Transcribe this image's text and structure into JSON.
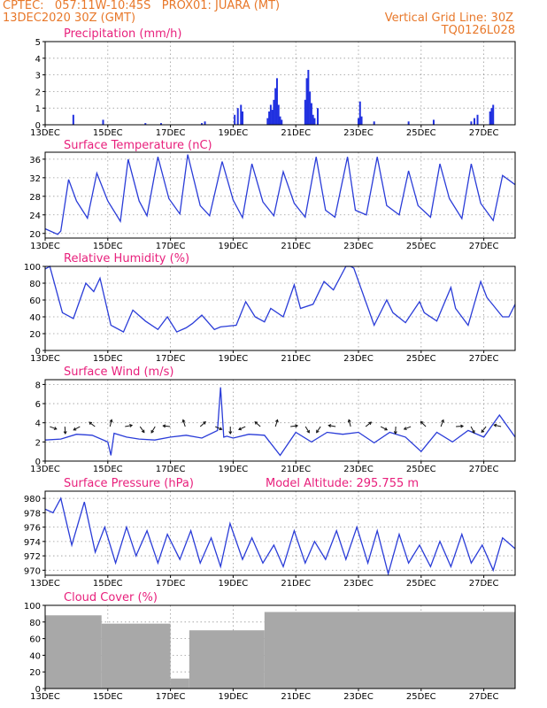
{
  "header": {
    "line1_left": "CPTEC:   057:11W-10:45S   PROX01: JUARA (MT)",
    "line2_left": "13DEC2020 30Z (GMT)",
    "line2_right": "Vertical Grid Line: 30Z",
    "line3_right": "TQ0126L028"
  },
  "colors": {
    "accent": "#e8782a",
    "title": "#e8207c",
    "line": "#2a3cd8",
    "bar_blue": "#2030e0",
    "bar_gray": "#a8a8a8"
  },
  "x_ticks": [
    "13DEC",
    "15DEC",
    "17DEC",
    "19DEC",
    "21DEC",
    "23DEC",
    "25DEC",
    "27DEC"
  ],
  "x_tick_days": [
    0,
    2,
    4,
    6,
    8,
    10,
    12,
    14
  ],
  "x_range_days": [
    0,
    15
  ],
  "chart_data": [
    {
      "type": "bar",
      "title": "Precipitation (mm/h)",
      "ylim": [
        0,
        5
      ],
      "yticks": [
        "0",
        "1",
        "2",
        "3",
        "4",
        "5"
      ],
      "x_days": [
        0.9,
        1.85,
        3.2,
        3.7,
        5.0,
        5.1,
        6.05,
        6.15,
        6.25,
        6.3,
        7.1,
        7.15,
        7.2,
        7.25,
        7.3,
        7.35,
        7.4,
        7.45,
        7.5,
        7.55,
        8.3,
        8.35,
        8.4,
        8.45,
        8.5,
        8.55,
        8.6,
        8.7,
        10.0,
        10.05,
        10.1,
        10.5,
        11.6,
        12.4,
        13.6,
        13.7,
        13.8,
        14.2,
        14.25,
        14.3
      ],
      "values": [
        0.6,
        0.3,
        0.1,
        0.1,
        0.1,
        0.2,
        0.6,
        1.0,
        1.2,
        0.8,
        0.4,
        0.8,
        1.2,
        0.9,
        1.5,
        2.2,
        2.8,
        1.2,
        0.5,
        0.3,
        1.5,
        2.8,
        3.3,
        2.0,
        1.3,
        0.6,
        0.4,
        1.0,
        0.4,
        1.4,
        0.5,
        0.2,
        0.2,
        0.3,
        0.2,
        0.4,
        0.6,
        0.8,
        1.0,
        1.2
      ]
    },
    {
      "type": "line",
      "title": "Surface Temperature (nC)",
      "ylim": [
        19,
        37.5
      ],
      "yticks": [
        "20",
        "24",
        "28",
        "32",
        "36"
      ],
      "x_days": [
        0,
        0.4,
        0.5,
        0.75,
        1.0,
        1.35,
        1.65,
        2.0,
        2.4,
        2.65,
        3.0,
        3.25,
        3.6,
        3.95,
        4.3,
        4.55,
        4.95,
        5.25,
        5.65,
        6.0,
        6.3,
        6.6,
        6.95,
        7.3,
        7.6,
        7.95,
        8.3,
        8.65,
        8.95,
        9.25,
        9.65,
        9.9,
        10.25,
        10.6,
        10.9,
        11.3,
        11.6,
        11.9,
        12.3,
        12.6,
        12.9,
        13.3,
        13.6,
        13.9,
        14.3,
        14.6,
        15.0
      ],
      "values": [
        21,
        19.8,
        20.5,
        31.6,
        27,
        23.3,
        33,
        27,
        22.6,
        36,
        27,
        23.8,
        36.5,
        27.5,
        24.2,
        37,
        26,
        23.8,
        35.5,
        27.2,
        23.4,
        35,
        26.8,
        23.8,
        33.3,
        26.5,
        23.5,
        36.5,
        25,
        23.5,
        36.5,
        25,
        24,
        36.5,
        26,
        24,
        33.5,
        26,
        23.5,
        35,
        27.5,
        23.2,
        35,
        26.5,
        22.8,
        32.5,
        30.5
      ]
    },
    {
      "type": "line",
      "title": "Relative Humidity (%)",
      "ylim": [
        0,
        100
      ],
      "yticks": [
        "0",
        "20",
        "40",
        "60",
        "80",
        "100"
      ],
      "x_days": [
        0,
        0.15,
        0.55,
        0.9,
        1.3,
        1.55,
        1.75,
        2.1,
        2.5,
        2.8,
        3.2,
        3.6,
        3.9,
        4.2,
        4.5,
        4.7,
        5.0,
        5.4,
        5.6,
        6.1,
        6.4,
        6.7,
        7.0,
        7.2,
        7.6,
        7.95,
        8.15,
        8.55,
        8.9,
        9.2,
        9.6,
        9.75,
        9.85,
        10.5,
        10.9,
        11.1,
        11.5,
        11.95,
        12.1,
        12.5,
        12.95,
        13.1,
        13.5,
        13.9,
        14.1,
        14.6,
        14.8,
        15.0
      ],
      "values": [
        97,
        100,
        45,
        38,
        80,
        70,
        86,
        30,
        22,
        48,
        35,
        25,
        40,
        22,
        27,
        32,
        42,
        25,
        28,
        30,
        58,
        40,
        34,
        50,
        40,
        78,
        50,
        55,
        82,
        72,
        100,
        100,
        98,
        30,
        60,
        45,
        33,
        58,
        45,
        35,
        75,
        50,
        30,
        82,
        63,
        40,
        40,
        55
      ]
    },
    {
      "type": "line",
      "title": "Surface Wind (m/s)",
      "ylim": [
        0,
        8.5
      ],
      "yticks": [
        "0",
        "2",
        "4",
        "6",
        "8"
      ],
      "x_days": [
        0,
        0.5,
        1.0,
        1.5,
        2.0,
        2.1,
        2.2,
        2.6,
        3.0,
        3.5,
        4.0,
        4.5,
        5.0,
        5.5,
        5.6,
        5.7,
        5.8,
        6.0,
        6.5,
        7.0,
        7.5,
        8.0,
        8.5,
        9.0,
        9.5,
        10.0,
        10.5,
        11.0,
        11.5,
        12.0,
        12.5,
        13.0,
        13.5,
        14.0,
        14.5,
        15.0
      ],
      "values": [
        2.2,
        2.3,
        2.8,
        2.7,
        2.0,
        0.6,
        2.9,
        2.5,
        2.3,
        2.2,
        2.5,
        2.7,
        2.4,
        3.2,
        7.7,
        2.5,
        2.6,
        2.4,
        2.8,
        2.7,
        0.6,
        3.0,
        2.0,
        3.0,
        2.8,
        3.0,
        1.9,
        3.0,
        2.5,
        1.0,
        3.0,
        2.0,
        3.2,
        2.5,
        4.8,
        2.5
      ],
      "arrows_label": "wind direction vectors"
    },
    {
      "type": "line",
      "title": "Surface Pressure (hPa)",
      "annotation": "Model Altitude: 295.755 m",
      "ylim": [
        969.3,
        981
      ],
      "yticks": [
        "970",
        "972",
        "974",
        "976",
        "978",
        "980"
      ],
      "x_days": [
        0,
        0.25,
        0.5,
        0.85,
        1.25,
        1.6,
        1.9,
        2.25,
        2.6,
        2.9,
        3.25,
        3.6,
        3.9,
        4.3,
        4.65,
        4.95,
        5.3,
        5.6,
        5.9,
        6.3,
        6.6,
        6.95,
        7.3,
        7.6,
        7.95,
        8.3,
        8.6,
        8.95,
        9.3,
        9.6,
        9.95,
        10.3,
        10.6,
        10.95,
        11.3,
        11.6,
        11.95,
        12.3,
        12.6,
        12.95,
        13.3,
        13.6,
        13.95,
        14.3,
        14.6,
        15.0
      ],
      "values": [
        978.5,
        978,
        980,
        973.5,
        979.5,
        972.5,
        976,
        971,
        976,
        972,
        975.5,
        971,
        975,
        971.5,
        975.5,
        971,
        974.5,
        970.5,
        976.5,
        971.5,
        974.5,
        971,
        973.5,
        970.5,
        975.5,
        971,
        974,
        971.5,
        975.5,
        971.5,
        976,
        971,
        975.5,
        969.5,
        975,
        971,
        973.5,
        970.5,
        974,
        970.5,
        975,
        971,
        973.5,
        970,
        974.5,
        973
      ]
    },
    {
      "type": "bar",
      "title": "Cloud Cover (%)",
      "ylim": [
        0,
        100
      ],
      "yticks": [
        "0",
        "20",
        "40",
        "60",
        "80",
        "100"
      ],
      "segments_days": [
        [
          0,
          1.8
        ],
        [
          1.8,
          4.0
        ],
        [
          4.0,
          4.6
        ],
        [
          4.6,
          7.0
        ],
        [
          7.0,
          15.0
        ]
      ],
      "segment_values": [
        88,
        78,
        12,
        70,
        92
      ]
    }
  ]
}
